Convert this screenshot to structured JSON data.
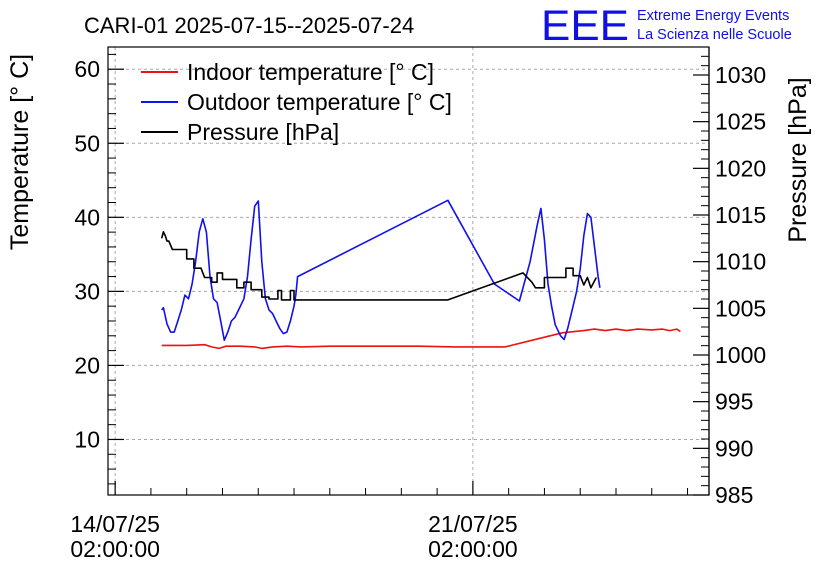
{
  "chart_data": {
    "type": "line",
    "title": "CARI-01 2025-07-15--2025-07-24",
    "logo": {
      "mark": "EEE",
      "line1": "Extreme Energy Events",
      "line2": "La Scienza nelle Scuole"
    },
    "ylabel_left": "Temperature [° C]",
    "ylabel_right": "Pressure [hPa]",
    "ylim_left": [
      2.5,
      63
    ],
    "ylim_right": [
      985,
      1033
    ],
    "yticks_left": [
      10,
      20,
      30,
      40,
      50,
      60
    ],
    "yticks_right": [
      985,
      990,
      995,
      1000,
      1005,
      1010,
      1015,
      1020,
      1025,
      1030
    ],
    "xlim_days": [
      -0.2,
      16.6
    ],
    "xticks": [
      {
        "day": 0,
        "line1": "14/07/25",
        "line2": "02:00:00"
      },
      {
        "day": 10,
        "line1": "21/07/25",
        "line2": "02:00:00"
      }
    ],
    "grid": true,
    "legend_position": "top-left",
    "series": [
      {
        "name": "Indoor temperature [° C]",
        "axis": "left",
        "color": "#ee1111",
        "points": [
          [
            1.3,
            22.7
          ],
          [
            2.0,
            22.7
          ],
          [
            2.5,
            22.8
          ],
          [
            2.7,
            22.5
          ],
          [
            2.9,
            22.3
          ],
          [
            3.1,
            22.6
          ],
          [
            3.5,
            22.6
          ],
          [
            3.9,
            22.5
          ],
          [
            4.1,
            22.3
          ],
          [
            4.4,
            22.5
          ],
          [
            4.8,
            22.6
          ],
          [
            5.2,
            22.5
          ],
          [
            6.0,
            22.6
          ],
          [
            7.5,
            22.6
          ],
          [
            8.5,
            22.6
          ],
          [
            9.5,
            22.5
          ],
          [
            10.9,
            22.5
          ],
          [
            12.5,
            24.4
          ],
          [
            13.1,
            24.7
          ],
          [
            13.4,
            24.9
          ],
          [
            13.7,
            24.7
          ],
          [
            14.0,
            24.9
          ],
          [
            14.3,
            24.7
          ],
          [
            14.6,
            24.9
          ],
          [
            15.0,
            24.8
          ],
          [
            15.3,
            24.9
          ],
          [
            15.5,
            24.7
          ],
          [
            15.7,
            24.9
          ],
          [
            15.8,
            24.6
          ]
        ]
      },
      {
        "name": "Outdoor temperature [° C]",
        "axis": "left",
        "color": "#1111ee",
        "points": [
          [
            1.3,
            27.5
          ],
          [
            1.35,
            27.8
          ],
          [
            1.45,
            25.6
          ],
          [
            1.55,
            24.5
          ],
          [
            1.65,
            24.5
          ],
          [
            1.75,
            26.0
          ],
          [
            1.85,
            27.5
          ],
          [
            1.95,
            29.5
          ],
          [
            2.05,
            29.0
          ],
          [
            2.15,
            31.0
          ],
          [
            2.25,
            34.0
          ],
          [
            2.35,
            38.0
          ],
          [
            2.45,
            39.8
          ],
          [
            2.55,
            38.0
          ],
          [
            2.65,
            32.0
          ],
          [
            2.75,
            29.0
          ],
          [
            2.85,
            28.5
          ],
          [
            2.95,
            26.0
          ],
          [
            3.05,
            23.4
          ],
          [
            3.15,
            24.5
          ],
          [
            3.25,
            26.0
          ],
          [
            3.35,
            26.5
          ],
          [
            3.45,
            27.5
          ],
          [
            3.6,
            29.0
          ],
          [
            3.7,
            32.0
          ],
          [
            3.8,
            37.0
          ],
          [
            3.9,
            41.5
          ],
          [
            4.0,
            42.2
          ],
          [
            4.1,
            34.0
          ],
          [
            4.2,
            29.0
          ],
          [
            4.3,
            27.5
          ],
          [
            4.4,
            27.0
          ],
          [
            4.5,
            26.0
          ],
          [
            4.6,
            25.0
          ],
          [
            4.7,
            24.3
          ],
          [
            4.8,
            24.5
          ],
          [
            4.9,
            26.0
          ],
          [
            5.0,
            28.0
          ],
          [
            5.05,
            29.5
          ],
          [
            5.1,
            32.0
          ],
          [
            9.3,
            42.3
          ],
          [
            10.6,
            31.0
          ],
          [
            11.3,
            28.7
          ],
          [
            11.6,
            34.0
          ],
          [
            11.8,
            39.0
          ],
          [
            11.9,
            41.2
          ],
          [
            12.0,
            37.0
          ],
          [
            12.1,
            31.0
          ],
          [
            12.2,
            28.0
          ],
          [
            12.3,
            25.5
          ],
          [
            12.45,
            24.0
          ],
          [
            12.55,
            23.5
          ],
          [
            12.65,
            25.0
          ],
          [
            12.75,
            27.0
          ],
          [
            12.9,
            30.0
          ],
          [
            13.0,
            33.0
          ],
          [
            13.1,
            37.5
          ],
          [
            13.2,
            40.5
          ],
          [
            13.3,
            40.0
          ],
          [
            13.4,
            36.0
          ],
          [
            13.5,
            32.0
          ],
          [
            13.55,
            30.5
          ]
        ]
      },
      {
        "name": "Pressure [hPa]",
        "axis": "right",
        "color": "#000000",
        "points": [
          [
            1.3,
            1012.5
          ],
          [
            1.35,
            1013.2
          ],
          [
            1.4,
            1012.8
          ],
          [
            1.45,
            1012.2
          ],
          [
            1.5,
            1012.2
          ],
          [
            1.6,
            1011.3
          ],
          [
            1.9,
            1011.3
          ],
          [
            2.0,
            1011.3
          ],
          [
            2.0,
            1010.3
          ],
          [
            2.2,
            1010.3
          ],
          [
            2.2,
            1009.3
          ],
          [
            2.4,
            1009.3
          ],
          [
            2.5,
            1008.3
          ],
          [
            2.7,
            1008.3
          ],
          [
            2.7,
            1007.8
          ],
          [
            2.85,
            1007.8
          ],
          [
            2.85,
            1008.8
          ],
          [
            3.0,
            1008.8
          ],
          [
            3.0,
            1008.1
          ],
          [
            3.4,
            1008.1
          ],
          [
            3.4,
            1007.2
          ],
          [
            3.6,
            1007.2
          ],
          [
            3.6,
            1007.8
          ],
          [
            3.8,
            1007.8
          ],
          [
            3.8,
            1007.0
          ],
          [
            4.1,
            1007.0
          ],
          [
            4.1,
            1006.2
          ],
          [
            4.3,
            1006.2
          ],
          [
            4.3,
            1006.0
          ],
          [
            4.55,
            1006.0
          ],
          [
            4.55,
            1006.9
          ],
          [
            4.65,
            1006.9
          ],
          [
            4.65,
            1005.9
          ],
          [
            4.9,
            1005.9
          ],
          [
            4.9,
            1006.9
          ],
          [
            5.0,
            1006.9
          ],
          [
            5.0,
            1005.9
          ],
          [
            9.3,
            1005.9
          ],
          [
            11.4,
            1008.8
          ],
          [
            11.65,
            1007.8
          ],
          [
            11.75,
            1007.2
          ],
          [
            12.0,
            1007.2
          ],
          [
            12.0,
            1008.3
          ],
          [
            12.6,
            1008.3
          ],
          [
            12.6,
            1009.3
          ],
          [
            12.8,
            1009.3
          ],
          [
            12.8,
            1008.5
          ],
          [
            13.0,
            1008.5
          ],
          [
            13.1,
            1007.5
          ],
          [
            13.2,
            1008.3
          ],
          [
            13.3,
            1007.2
          ],
          [
            13.45,
            1008.3
          ]
        ]
      }
    ]
  }
}
